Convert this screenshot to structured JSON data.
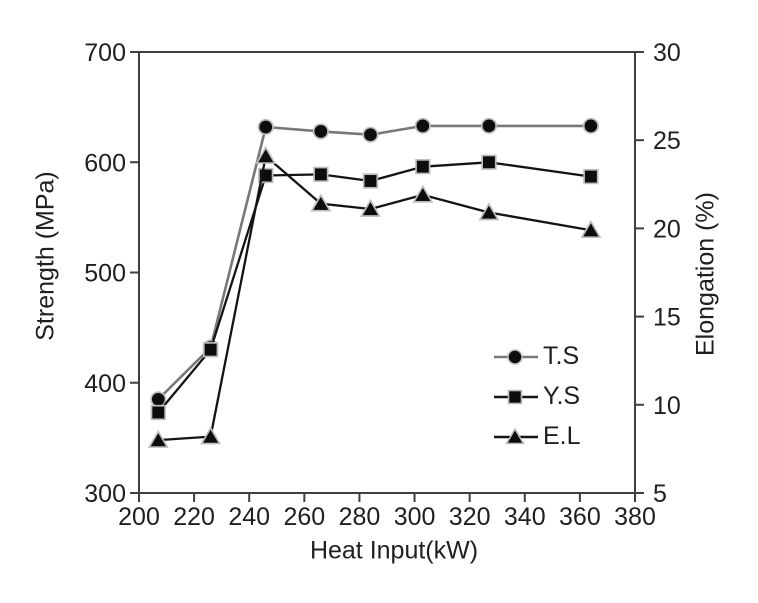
{
  "figure": {
    "background": "#ffffff",
    "axis_color": "#3f3f3f",
    "text_color": "#1f1f1f"
  },
  "chart_data": {
    "type": "line",
    "title": "",
    "xlabel": "Heat Input(kW)",
    "ylabel_left": "Strength (MPa)",
    "ylabel_right": "Elongation (%)",
    "xlim": [
      200,
      380
    ],
    "x_ticks": [
      200,
      220,
      240,
      260,
      280,
      300,
      320,
      340,
      360,
      380
    ],
    "ylim_left": [
      300,
      700
    ],
    "y_ticks_left": [
      300,
      400,
      500,
      600,
      700
    ],
    "ylim_right": [
      5,
      30
    ],
    "y_ticks_right": [
      5,
      10,
      15,
      20,
      25,
      30
    ],
    "grid": false,
    "legend_position": "inside-right",
    "x": [
      207,
      226,
      246,
      266,
      284,
      303,
      327,
      364
    ],
    "series": [
      {
        "name": "T.S",
        "axis": "left",
        "marker": "circle",
        "line_color": "#787878",
        "marker_fill": "#0d0d0d",
        "marker_stroke": "#bdbdbd",
        "values": [
          385,
          432,
          632,
          628,
          625,
          633,
          633,
          633
        ]
      },
      {
        "name": "Y.S",
        "axis": "left",
        "marker": "square",
        "line_color": "#141414",
        "marker_fill": "#0d0d0d",
        "marker_stroke": "#bdbdbd",
        "values": [
          373,
          430,
          588,
          589,
          583,
          596,
          600,
          587
        ]
      },
      {
        "name": "E.L",
        "axis": "right",
        "marker": "triangle",
        "line_color": "#141414",
        "marker_fill": "#0d0d0d",
        "marker_stroke": "#bdbdbd",
        "values": [
          8.0,
          8.2,
          24.1,
          21.4,
          21.1,
          21.9,
          20.9,
          19.9
        ]
      }
    ]
  }
}
